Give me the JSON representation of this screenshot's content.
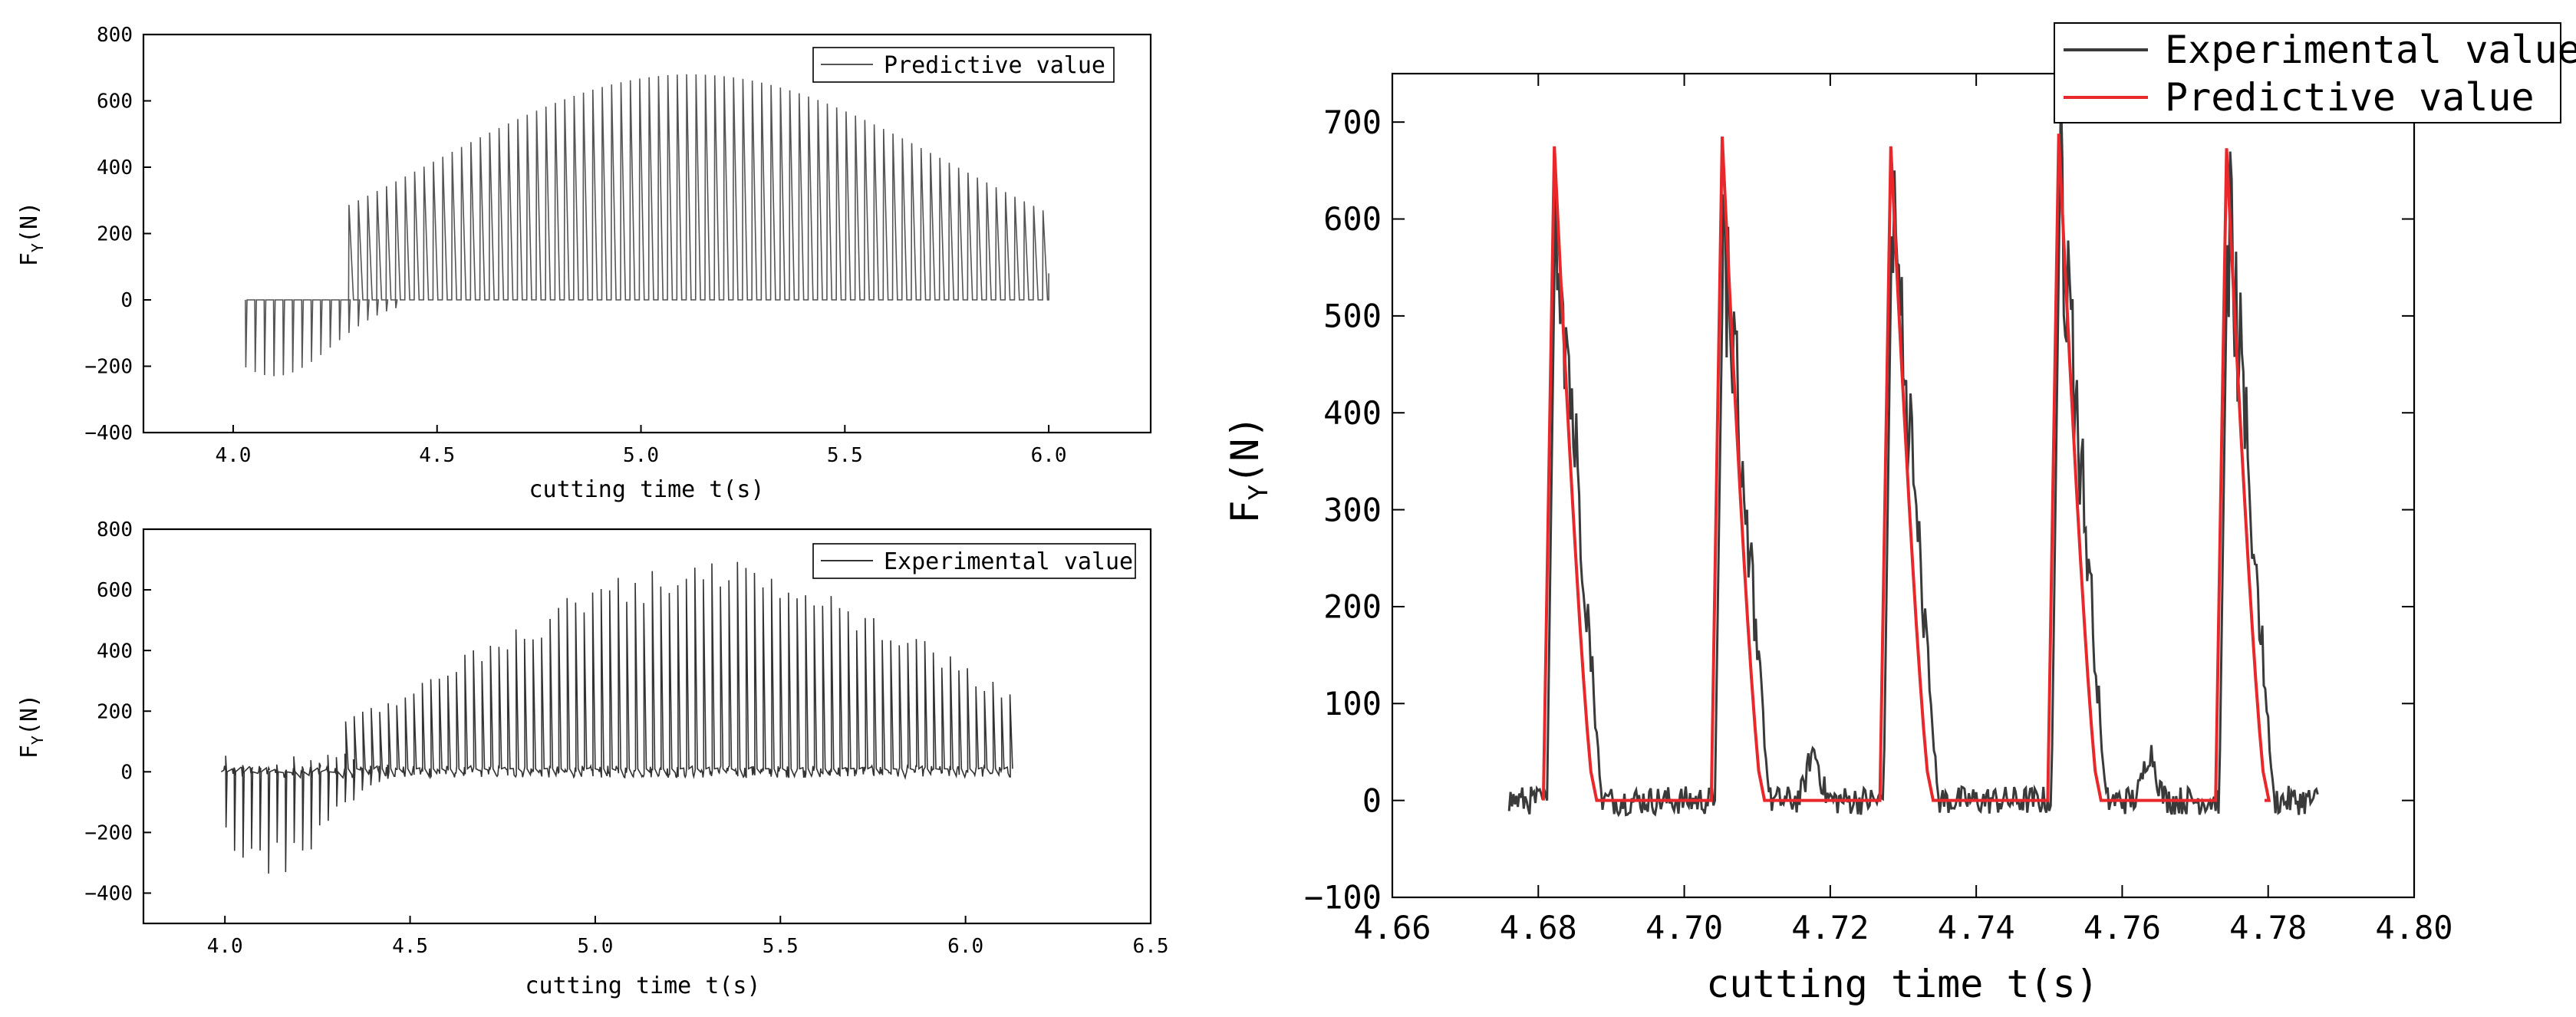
{
  "chart_data": [
    {
      "id": "top-left",
      "type": "line",
      "xlabel": "cutting time t(s)",
      "ylabel_main": "F",
      "ylabel_sub": "Y",
      "ylabel_unit": "(N)",
      "xlim": [
        3.78,
        6.25
      ],
      "ylim": [
        -400,
        800
      ],
      "xticks": [
        4.0,
        4.5,
        5.0,
        5.5,
        6.0
      ],
      "xtick_labels": [
        "4.0",
        "4.5",
        "5.0",
        "5.5",
        "6.0"
      ],
      "yticks": [
        -400,
        -200,
        0,
        200,
        400,
        600,
        800
      ],
      "ytick_labels": [
        "−400",
        "−200",
        "0",
        "200",
        "400",
        "600",
        "800"
      ],
      "legend": "Predictive value",
      "legend_position": "top-right",
      "series": [
        {
          "name": "Predictive value",
          "color": "#555555",
          "t_start": 4.03,
          "t_end": 6.0,
          "period": 0.023,
          "peak": 680,
          "center": 5.12,
          "width": 0.9
        }
      ]
    },
    {
      "id": "bottom-left",
      "type": "line",
      "xlabel": "cutting time t(s)",
      "ylabel_main": "F",
      "ylabel_sub": "Y",
      "ylabel_unit": "(N)",
      "xlim": [
        3.78,
        6.5
      ],
      "ylim": [
        -500,
        800
      ],
      "xticks": [
        4.0,
        4.5,
        5.0,
        5.5,
        6.0,
        6.5
      ],
      "xtick_labels": [
        "4.0",
        "4.5",
        "5.0",
        "5.5",
        "6.0",
        "6.5"
      ],
      "yticks": [
        -400,
        -200,
        0,
        200,
        400,
        600,
        800
      ],
      "ytick_labels": [
        "−400",
        "−200",
        "0",
        "200",
        "400",
        "600",
        "800"
      ],
      "legend": "Experimental value",
      "legend_position": "top-right",
      "series": [
        {
          "name": "Experimental value",
          "color": "#333333",
          "t_start": 4.0,
          "t_end": 6.12,
          "period": 0.023,
          "peak": 670,
          "center": 5.3,
          "width": 0.85
        }
      ]
    },
    {
      "id": "right",
      "type": "line",
      "xlabel": "cutting time t(s)",
      "ylabel_main": "F",
      "ylabel_sub": "Y",
      "ylabel_unit": "(N)",
      "xlim": [
        4.66,
        4.8
      ],
      "ylim": [
        -100,
        750
      ],
      "xticks": [
        4.66,
        4.68,
        4.7,
        4.72,
        4.74,
        4.76,
        4.78,
        4.8
      ],
      "xtick_labels": [
        "4.66",
        "4.68",
        "4.70",
        "4.72",
        "4.74",
        "4.76",
        "4.78",
        "4.80"
      ],
      "yticks": [
        -100,
        0,
        100,
        200,
        300,
        400,
        500,
        600,
        700
      ],
      "ytick_labels": [
        "−100",
        "0",
        "100",
        "200",
        "300",
        "400",
        "500",
        "600",
        "700"
      ],
      "legend_position": "top-right",
      "pulse_starts": [
        4.6812,
        4.7042,
        4.7273,
        4.7503,
        4.7733
      ],
      "predictive_peaks": [
        675,
        685,
        675,
        688,
        673
      ],
      "experimental_peaks": [
        648,
        605,
        635,
        655,
        625
      ],
      "series": [
        {
          "name": "Experimental value",
          "color": "#3a3a3a",
          "t_start": 4.676,
          "t_end": 4.787
        },
        {
          "name": "Predictive value",
          "color": "#e8282a"
        }
      ]
    }
  ]
}
